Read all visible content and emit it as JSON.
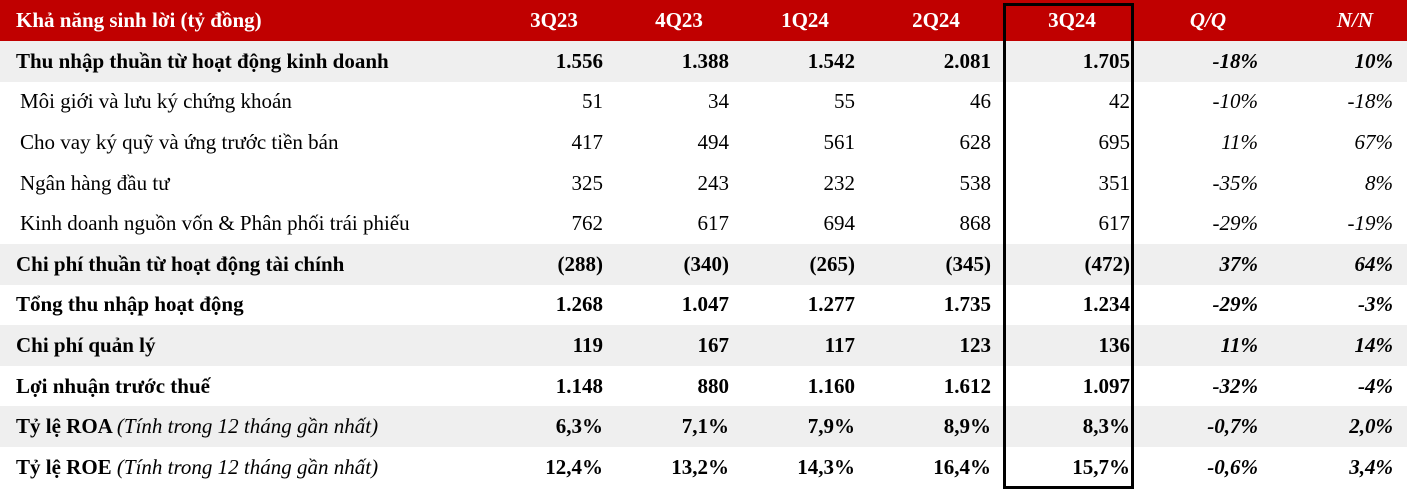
{
  "header": {
    "title": "Khả năng sinh lời (tỷ đồng)",
    "periods": [
      "3Q23",
      "4Q23",
      "1Q24",
      "2Q24",
      "3Q24"
    ],
    "qoq": "Q/Q",
    "yoy": "N/N"
  },
  "rows": [
    {
      "label": "Thu nhập thuần từ hoạt động kinh doanh",
      "note": "",
      "values": [
        "1.556",
        "1.388",
        "1.542",
        "2.081",
        "1.705"
      ],
      "qoq": "-18%",
      "yoy": "10%"
    },
    {
      "label": "Môi giới và lưu ký chứng khoán",
      "note": "",
      "values": [
        "51",
        "34",
        "55",
        "46",
        "42"
      ],
      "qoq": "-10%",
      "yoy": "-18%"
    },
    {
      "label": "Cho vay ký quỹ và ứng trước tiền bán",
      "note": "",
      "values": [
        "417",
        "494",
        "561",
        "628",
        "695"
      ],
      "qoq": "11%",
      "yoy": "67%"
    },
    {
      "label": "Ngân hàng đầu tư",
      "note": "",
      "values": [
        "325",
        "243",
        "232",
        "538",
        "351"
      ],
      "qoq": "-35%",
      "yoy": "8%"
    },
    {
      "label": "Kinh doanh nguồn vốn & Phân phối trái phiếu",
      "note": "",
      "values": [
        "762",
        "617",
        "694",
        "868",
        "617"
      ],
      "qoq": "-29%",
      "yoy": "-19%"
    },
    {
      "label": "Chi phí thuần từ hoạt động tài chính",
      "note": "",
      "values": [
        "(288)",
        "(340)",
        "(265)",
        "(345)",
        "(472)"
      ],
      "qoq": "37%",
      "yoy": "64%"
    },
    {
      "label": "Tổng thu nhập hoạt động",
      "note": "",
      "values": [
        "1.268",
        "1.047",
        "1.277",
        "1.735",
        "1.234"
      ],
      "qoq": "-29%",
      "yoy": "-3%"
    },
    {
      "label": "Chi phí quản lý",
      "note": "",
      "values": [
        "119",
        "167",
        "117",
        "123",
        "136"
      ],
      "qoq": "11%",
      "yoy": "14%"
    },
    {
      "label": "Lợi nhuận trước thuế",
      "note": "",
      "values": [
        "1.148",
        "880",
        "1.160",
        "1.612",
        "1.097"
      ],
      "qoq": "-32%",
      "yoy": "-4%"
    },
    {
      "label": "Tỷ lệ ROA",
      "note": "(Tính trong 12 tháng gần nhất)",
      "values": [
        "6,3%",
        "7,1%",
        "7,9%",
        "8,9%",
        "8,3%"
      ],
      "qoq": "-0,7%",
      "yoy": "2,0%"
    },
    {
      "label": "Tỷ lệ ROE",
      "note": "(Tính trong 12 tháng gần nhất)",
      "values": [
        "12,4%",
        "13,2%",
        "14,3%",
        "16,4%",
        "15,7%"
      ],
      "qoq": "-0,6%",
      "yoy": "3,4%"
    }
  ],
  "colors": {
    "header_bg": "#c00000",
    "header_text": "#ffffff",
    "shade": "#efefef"
  }
}
